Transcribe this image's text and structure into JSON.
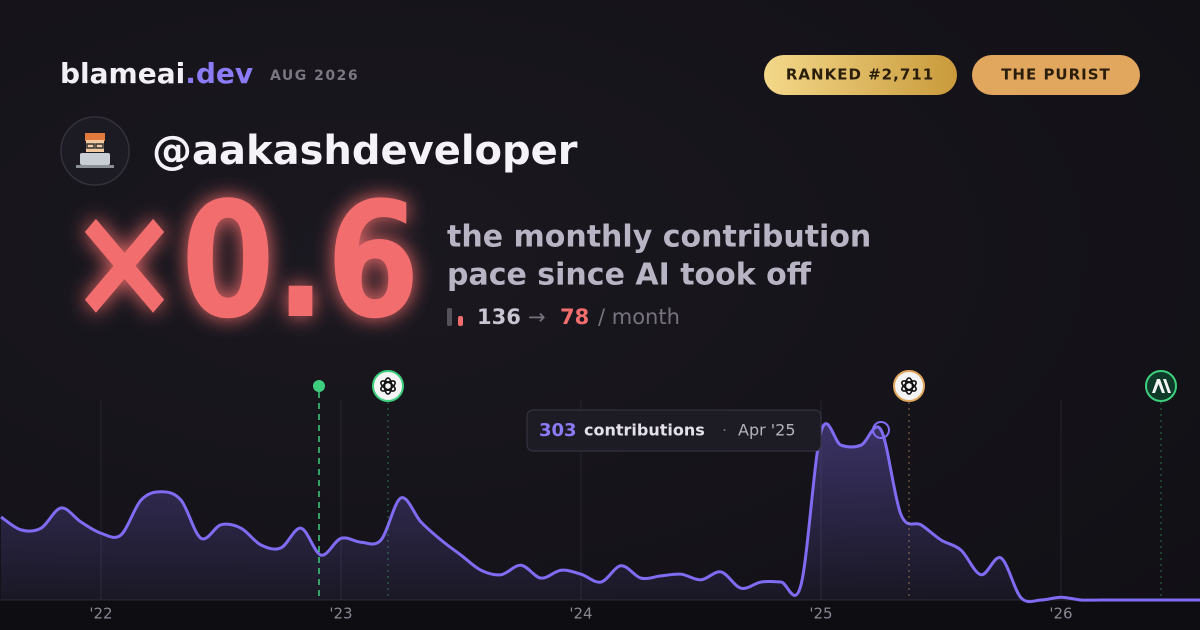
{
  "header": {
    "brand": "blameai",
    "brand_tld": ".dev",
    "date": "AUG 2026",
    "badges": [
      "RANKED #2,711",
      "THE PURIST"
    ]
  },
  "profile": {
    "handle": "@aakashdeveloper"
  },
  "headline": {
    "multiplier": "×0.6",
    "caption_lines": [
      "the monthly contribution",
      "pace since AI took off"
    ],
    "before": 136,
    "arrow": "→",
    "after": 78,
    "unit": "/ month"
  },
  "chart_data": {
    "type": "area",
    "color": "#7f6cf2",
    "categories": [
      null,
      null,
      null,
      null,
      null,
      "'22",
      null,
      null,
      null,
      null,
      null,
      null,
      null,
      null,
      null,
      null,
      null,
      "'23",
      null,
      null,
      null,
      null,
      null,
      null,
      null,
      null,
      null,
      null,
      null,
      "'24",
      null,
      null,
      null,
      null,
      null,
      null,
      null,
      null,
      null,
      null,
      null,
      "'25",
      null,
      null,
      null,
      null,
      null,
      null,
      null,
      null,
      null,
      null,
      null,
      "'26",
      null,
      null,
      null,
      null,
      null,
      null,
      null
    ],
    "values": [
      148,
      125,
      128,
      164,
      139,
      119,
      116,
      178,
      193,
      178,
      110,
      134,
      128,
      98,
      93,
      128,
      80,
      110,
      103,
      107,
      182,
      139,
      107,
      80,
      53,
      45,
      62,
      39,
      53,
      46,
      32,
      61,
      39,
      43,
      46,
      36,
      50,
      21,
      32,
      32,
      27,
      300,
      276,
      276,
      303,
      152,
      134,
      107,
      89,
      45,
      75,
      4,
      0,
      5,
      0,
      0,
      0,
      0,
      0,
      0,
      0
    ],
    "tooltip": {
      "value": 303,
      "label": "contributions",
      "separator": "·",
      "date": "Apr '25"
    }
  }
}
